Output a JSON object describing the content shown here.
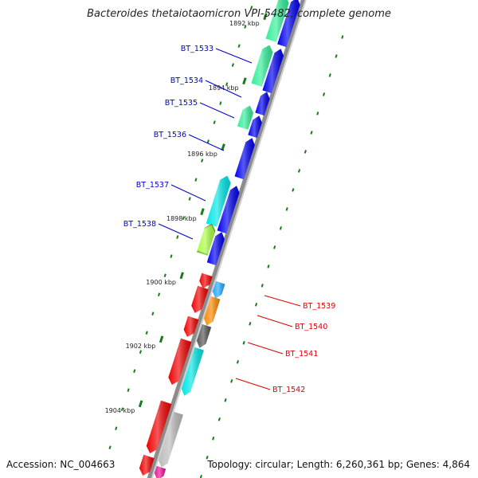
{
  "title": "Bacteroides thetaiotaomicron VPI-5482, complete genome",
  "footer": {
    "accession": "Accession: NC_004663",
    "topology": "Topology: circular; Length: 6,260,361 bp; Genes: 4,864"
  },
  "colors": {
    "backbone": "#8c8c8c",
    "tick": "#1a7a1a",
    "plus_label": "#0000cc",
    "minus_label": "#dd0000"
  },
  "ticks": [
    {
      "label": "1892 kbp"
    },
    {
      "label": "1894 kbp"
    },
    {
      "label": "1896 kbp"
    },
    {
      "label": "1898 kbp"
    },
    {
      "label": "1900 kbp"
    },
    {
      "label": "1902 kbp"
    },
    {
      "label": "1904 kbp"
    }
  ],
  "labels": [
    {
      "text": "BT_1533",
      "strand": "plus"
    },
    {
      "text": "BT_1534",
      "strand": "plus"
    },
    {
      "text": "BT_1535",
      "strand": "plus"
    },
    {
      "text": "BT_1536",
      "strand": "plus"
    },
    {
      "text": "BT_1537",
      "strand": "plus"
    },
    {
      "text": "BT_1538",
      "strand": "plus"
    },
    {
      "text": "BT_1539",
      "strand": "minus"
    },
    {
      "text": "BT_1540",
      "strand": "minus"
    },
    {
      "text": "BT_1541",
      "strand": "minus"
    },
    {
      "text": "BT_1542",
      "strand": "minus"
    }
  ],
  "genes": [
    {
      "track": "inner_plus",
      "color": "#0000ee"
    },
    {
      "track": "outer_plus",
      "color": "#33ee99"
    },
    {
      "track": "inner_plus",
      "color": "#0000ee"
    },
    {
      "track": "outer_plus",
      "color": "#33ee99"
    },
    {
      "track": "inner_plus",
      "color": "#0000ee"
    },
    {
      "track": "inner_plus",
      "color": "#0000ee"
    },
    {
      "track": "outer_plus",
      "color": "#33ee99"
    },
    {
      "track": "inner_plus",
      "color": "#0000ee"
    },
    {
      "track": "inner_plus",
      "color": "#0000ee"
    },
    {
      "track": "outer_plus",
      "color": "#00e5e5"
    },
    {
      "track": "inner_plus",
      "color": "#0000ee"
    },
    {
      "track": "outer_plus",
      "color": "#66bb22"
    },
    {
      "track": "outer_plus",
      "color": "#aaff44"
    },
    {
      "track": "inner_plus",
      "color": "#0000ee"
    },
    {
      "track": "outer_minus",
      "color": "#ee0000"
    },
    {
      "track": "inner_minus",
      "color": "#22aaff"
    },
    {
      "track": "outer_minus",
      "color": "#ee0000"
    },
    {
      "track": "inner_minus",
      "color": "#ff8800"
    },
    {
      "track": "outer_minus",
      "color": "#ee0000"
    },
    {
      "track": "inner_minus",
      "color": "#555555"
    },
    {
      "track": "outer_minus",
      "color": "#ee0000"
    },
    {
      "track": "inner_minus",
      "color": "#00e5e5"
    },
    {
      "track": "outer_minus",
      "color": "#ee0000"
    },
    {
      "track": "inner_minus",
      "color": "#bbbbbb"
    },
    {
      "track": "outer_minus",
      "color": "#ee0000"
    },
    {
      "track": "inner_minus",
      "color": "#ee1199"
    }
  ]
}
